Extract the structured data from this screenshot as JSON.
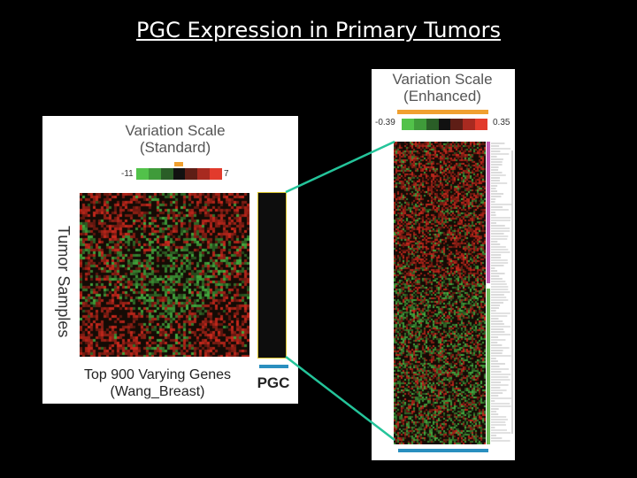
{
  "slide": {
    "title": "PGC Expression in Primary Tumors"
  },
  "left_panel": {
    "scale_title_line1": "Variation Scale",
    "scale_title_line2": "(Standard)",
    "scale_min": "-11",
    "scale_max": "7",
    "y_label": "Tumor Samples",
    "x_label_line1": "Top 900 Varying Genes",
    "x_label_line2": "(Wang_Breast)",
    "pgc_label": "PGC"
  },
  "right_panel": {
    "scale_title_line1": "Variation Scale",
    "scale_title_line2": "(Enhanced)",
    "scale_min": "-0.39",
    "scale_max": "0.35"
  },
  "colors": {
    "background": "#000000",
    "red": "#d42a1e",
    "green": "#46b542",
    "dark": "#140b05",
    "orange_bar": "#f0a030",
    "blue_bar": "#2a8fbf",
    "teal_connector": "#24c49a",
    "magenta_bar": "#c25cb3",
    "green_bar": "#6dbb57",
    "pgc_outline": "#d8c22a"
  },
  "icons": {
    "dendrogram": "dendrogram-icon"
  }
}
